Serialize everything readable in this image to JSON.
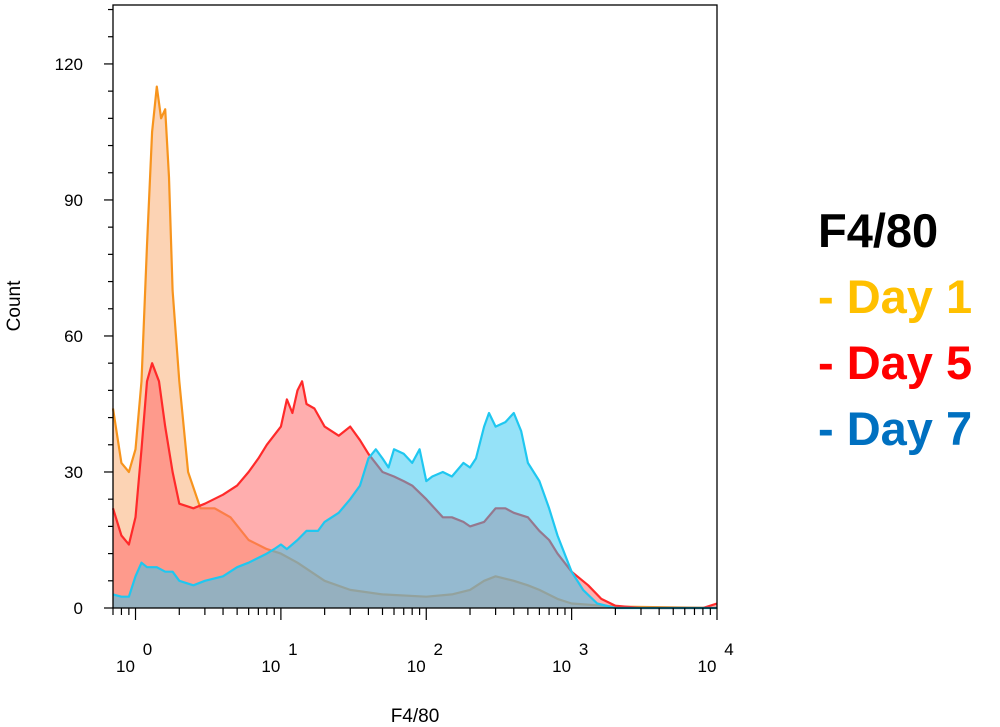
{
  "chart_data": {
    "type": "area",
    "xlabel": "F4/80",
    "ylabel": "Count",
    "xscale": "log",
    "xlim": [
      0.7,
      10000
    ],
    "ylim": [
      0,
      133
    ],
    "yticks": [
      0,
      30,
      60,
      90,
      120
    ],
    "xticks": [
      {
        "value": 1,
        "base": "10",
        "exp": "0"
      },
      {
        "value": 10,
        "base": "10",
        "exp": "1"
      },
      {
        "value": 100,
        "base": "10",
        "exp": "2"
      },
      {
        "value": 1000,
        "base": "10",
        "exp": "3"
      },
      {
        "value": 10000,
        "base": "10",
        "exp": "4"
      }
    ],
    "legend": {
      "title": "F4/80",
      "placement": "right",
      "entries": [
        {
          "label": "- Day 1",
          "color": "#ffc000"
        },
        {
          "label": "- Day 5",
          "color": "#ff0000"
        },
        {
          "label": "- Day 7",
          "color": "#0070c0"
        }
      ]
    },
    "series": [
      {
        "key": "day1",
        "stroke": "#f7941d",
        "fill": "#f9a86a",
        "fill_opacity": 0.5,
        "points": [
          [
            0.7,
            44
          ],
          [
            0.8,
            32
          ],
          [
            0.9,
            30
          ],
          [
            1.0,
            35
          ],
          [
            1.1,
            50
          ],
          [
            1.2,
            80
          ],
          [
            1.3,
            105
          ],
          [
            1.4,
            115
          ],
          [
            1.5,
            108
          ],
          [
            1.6,
            110
          ],
          [
            1.7,
            95
          ],
          [
            1.8,
            70
          ],
          [
            2.0,
            50
          ],
          [
            2.3,
            30
          ],
          [
            2.8,
            22
          ],
          [
            3.5,
            22
          ],
          [
            4.5,
            20
          ],
          [
            6,
            15
          ],
          [
            8,
            13
          ],
          [
            10,
            12
          ],
          [
            13,
            10
          ],
          [
            20,
            6
          ],
          [
            30,
            4
          ],
          [
            50,
            3
          ],
          [
            100,
            2.5
          ],
          [
            150,
            3
          ],
          [
            200,
            4
          ],
          [
            250,
            6
          ],
          [
            300,
            7
          ],
          [
            400,
            6
          ],
          [
            500,
            5
          ],
          [
            600,
            4
          ],
          [
            800,
            2
          ],
          [
            1000,
            1
          ],
          [
            2000,
            0.3
          ],
          [
            10000,
            0
          ]
        ]
      },
      {
        "key": "day5",
        "stroke": "#ff2a2a",
        "fill": "#ff6b6b",
        "fill_opacity": 0.55,
        "points": [
          [
            0.7,
            22
          ],
          [
            0.8,
            16
          ],
          [
            0.9,
            14
          ],
          [
            1.0,
            20
          ],
          [
            1.1,
            35
          ],
          [
            1.2,
            50
          ],
          [
            1.3,
            54
          ],
          [
            1.45,
            50
          ],
          [
            1.6,
            40
          ],
          [
            1.8,
            30
          ],
          [
            2.0,
            23
          ],
          [
            2.5,
            22
          ],
          [
            3,
            23
          ],
          [
            4,
            25
          ],
          [
            5,
            27
          ],
          [
            6,
            30
          ],
          [
            7,
            33
          ],
          [
            8,
            36
          ],
          [
            10,
            40
          ],
          [
            11,
            46
          ],
          [
            12,
            43
          ],
          [
            13,
            48
          ],
          [
            14,
            50
          ],
          [
            15,
            45
          ],
          [
            17,
            44
          ],
          [
            20,
            40
          ],
          [
            25,
            38
          ],
          [
            30,
            40
          ],
          [
            35,
            37
          ],
          [
            40,
            34
          ],
          [
            50,
            30
          ],
          [
            60,
            29
          ],
          [
            70,
            28
          ],
          [
            80,
            27
          ],
          [
            100,
            24
          ],
          [
            130,
            20
          ],
          [
            150,
            20
          ],
          [
            180,
            19
          ],
          [
            200,
            18
          ],
          [
            250,
            19
          ],
          [
            300,
            22
          ],
          [
            350,
            22
          ],
          [
            400,
            21
          ],
          [
            500,
            20
          ],
          [
            600,
            17
          ],
          [
            700,
            15
          ],
          [
            800,
            12
          ],
          [
            1000,
            8
          ],
          [
            1300,
            5
          ],
          [
            1600,
            2
          ],
          [
            2000,
            0.5
          ],
          [
            3000,
            0
          ],
          [
            8000,
            0
          ],
          [
            9000,
            0.5
          ],
          [
            10000,
            1
          ]
        ]
      },
      {
        "key": "day7",
        "stroke": "#1fc7f0",
        "fill": "#2cc6f2",
        "fill_opacity": 0.5,
        "points": [
          [
            0.7,
            3
          ],
          [
            0.8,
            2.5
          ],
          [
            0.9,
            2.5
          ],
          [
            1.0,
            7
          ],
          [
            1.1,
            10
          ],
          [
            1.2,
            9
          ],
          [
            1.4,
            9
          ],
          [
            1.6,
            8
          ],
          [
            1.8,
            8
          ],
          [
            2,
            6
          ],
          [
            2.5,
            5
          ],
          [
            3,
            6
          ],
          [
            4,
            7
          ],
          [
            5,
            9
          ],
          [
            6,
            10
          ],
          [
            8,
            12
          ],
          [
            9,
            13
          ],
          [
            10,
            14
          ],
          [
            11,
            13
          ],
          [
            13,
            15
          ],
          [
            15,
            17
          ],
          [
            18,
            17
          ],
          [
            20,
            19
          ],
          [
            25,
            21
          ],
          [
            30,
            24
          ],
          [
            35,
            27
          ],
          [
            40,
            33
          ],
          [
            45,
            35
          ],
          [
            50,
            33
          ],
          [
            55,
            31
          ],
          [
            60,
            35
          ],
          [
            70,
            34
          ],
          [
            80,
            32
          ],
          [
            90,
            35
          ],
          [
            100,
            28
          ],
          [
            110,
            29
          ],
          [
            130,
            30
          ],
          [
            150,
            29
          ],
          [
            180,
            32
          ],
          [
            200,
            31
          ],
          [
            220,
            33
          ],
          [
            250,
            40
          ],
          [
            270,
            43
          ],
          [
            300,
            40
          ],
          [
            350,
            41
          ],
          [
            400,
            43
          ],
          [
            450,
            39
          ],
          [
            500,
            32
          ],
          [
            600,
            28
          ],
          [
            700,
            22
          ],
          [
            800,
            16
          ],
          [
            1000,
            8
          ],
          [
            1200,
            4
          ],
          [
            1500,
            1
          ],
          [
            2000,
            0
          ],
          [
            10000,
            0
          ]
        ]
      }
    ]
  }
}
